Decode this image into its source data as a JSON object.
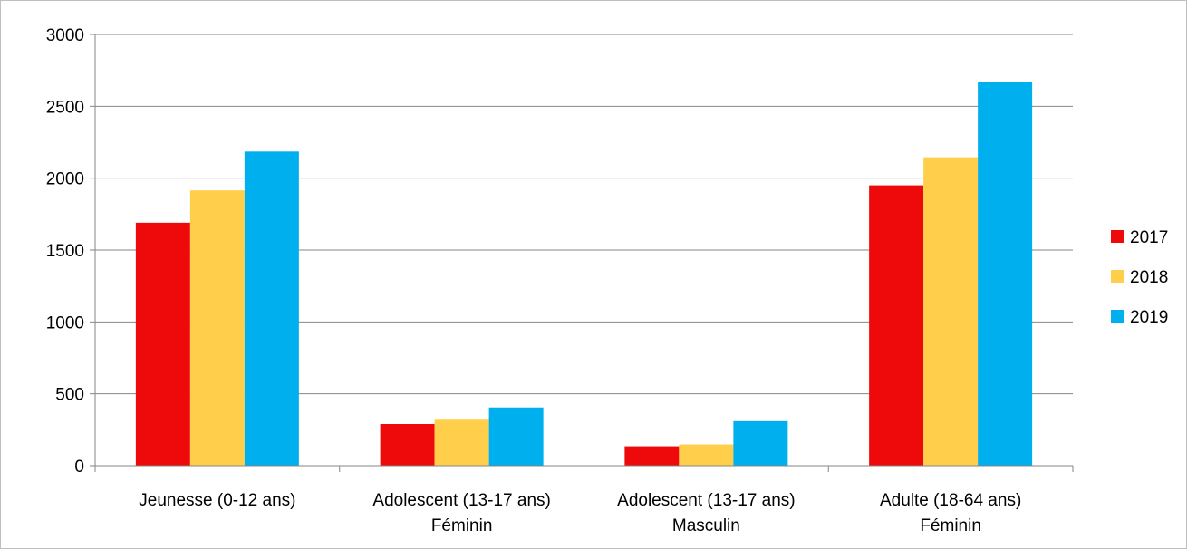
{
  "chart_data": {
    "type": "bar",
    "title": "",
    "xlabel": "",
    "ylabel": "",
    "ylim": [
      0,
      3000
    ],
    "yticks": [
      0,
      500,
      1000,
      1500,
      2000,
      2500,
      3000
    ],
    "grid": true,
    "legend_position": "right",
    "categories": [
      [
        "Jeunesse (0-12 ans)"
      ],
      [
        "Adolescent (13-17 ans)",
        "Féminin"
      ],
      [
        "Adolescent (13-17 ans)",
        "Masculin"
      ],
      [
        "Adulte (18-64 ans)",
        "Féminin"
      ]
    ],
    "series": [
      {
        "name": "2017",
        "color": "#EE0A0A",
        "values": [
          1690,
          290,
          135,
          1950
        ]
      },
      {
        "name": "2018",
        "color": "#FFCF4B",
        "values": [
          1915,
          320,
          148,
          2145
        ]
      },
      {
        "name": "2019",
        "color": "#00B0EE",
        "values": [
          2185,
          405,
          310,
          2670
        ]
      }
    ]
  }
}
